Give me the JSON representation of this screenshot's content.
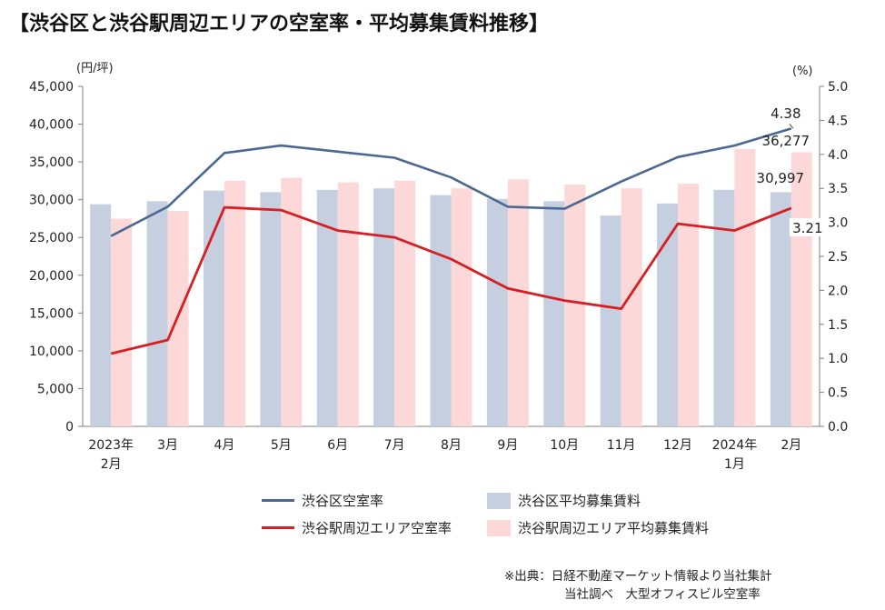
{
  "title": "【渋谷区と渋谷駅周辺エリアの空室率・平均募集賃料推移】",
  "source_lines": [
    "※出典：日経不動産マーケット情報より当社集計",
    "当社調べ　大型オフィスビル空室率"
  ],
  "chart_data": {
    "type": "bar",
    "title": "【渋谷区と渋谷駅周辺エリアの空室率・平均募集賃料推移】",
    "left_axis_unit": "(円/坪)",
    "right_axis_unit": "(%)",
    "ylim_left": [
      0,
      45000
    ],
    "ylim_right": [
      0,
      5.0
    ],
    "left_ticks": [
      "0",
      "5,000",
      "10,000",
      "15,000",
      "20,000",
      "25,000",
      "30,000",
      "35,000",
      "40,000",
      "45,000"
    ],
    "right_ticks": [
      "0.0",
      "0.5",
      "1.0",
      "1.5",
      "2.0",
      "2.5",
      "3.0",
      "3.5",
      "4.0",
      "4.5",
      "5.0"
    ],
    "categories": [
      [
        "2023年",
        "2月"
      ],
      [
        "3月"
      ],
      [
        "4月"
      ],
      [
        "5月"
      ],
      [
        "6月"
      ],
      [
        "7月"
      ],
      [
        "8月"
      ],
      [
        "9月"
      ],
      [
        "10月"
      ],
      [
        "11月"
      ],
      [
        "12月"
      ],
      [
        "2024年",
        "1月"
      ],
      [
        "2月"
      ]
    ],
    "bar_series": [
      {
        "name": "渋谷区平均募集賃料",
        "color": "#c5cfe0",
        "values": [
          29400,
          29800,
          31200,
          31000,
          31300,
          31500,
          30600,
          30100,
          29800,
          27900,
          29500,
          31300,
          30997
        ]
      },
      {
        "name": "渋谷駅周辺エリア平均募集賃料",
        "color": "#fcd8d8",
        "values": [
          27500,
          28500,
          32500,
          32900,
          32300,
          32500,
          31500,
          32700,
          32000,
          31500,
          32100,
          36700,
          36277
        ]
      }
    ],
    "line_series": [
      {
        "name": "渋谷区空室率",
        "color": "#4a6891",
        "values": [
          2.8,
          3.23,
          4.02,
          4.13,
          4.04,
          3.95,
          3.66,
          3.23,
          3.2,
          3.6,
          3.96,
          4.13,
          4.38
        ]
      },
      {
        "name": "渋谷駅周辺エリア空室率",
        "color": "#d61e23",
        "values": [
          1.07,
          1.27,
          3.22,
          3.18,
          2.88,
          2.78,
          2.46,
          2.03,
          1.85,
          1.73,
          2.98,
          2.88,
          3.21
        ]
      }
    ],
    "data_labels": [
      {
        "text": "4.38",
        "series": "渋谷区空室率",
        "index": 12
      },
      {
        "text": "36,277",
        "series": "渋谷駅周辺エリア平均募集賃料",
        "index": 12
      },
      {
        "text": "30,997",
        "series": "渋谷区平均募集賃料",
        "index": 12
      },
      {
        "text": "3.21",
        "series": "渋谷駅周辺エリア空室率",
        "index": 12
      }
    ],
    "grid": false,
    "legend_position": "bottom"
  }
}
